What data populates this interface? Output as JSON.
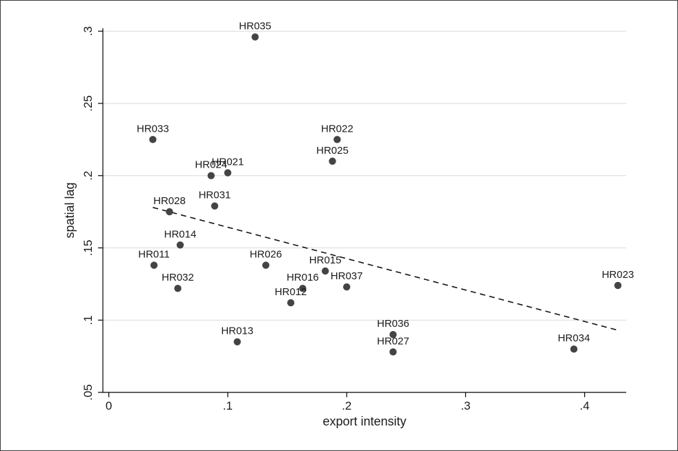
{
  "chart_data": {
    "type": "scatter",
    "title": "",
    "xlabel": "export intensity",
    "ylabel": "spatial lag",
    "xlim": [
      -0.005,
      0.435
    ],
    "ylim": [
      0.05,
      0.302
    ],
    "x_ticks": [
      0,
      0.1,
      0.2,
      0.3,
      0.4
    ],
    "x_tick_labels": [
      "0",
      ".1",
      ".2",
      ".3",
      ".4"
    ],
    "y_ticks": [
      0.05,
      0.1,
      0.15,
      0.2,
      0.25,
      0.3
    ],
    "y_tick_labels": [
      ".05",
      ".1",
      ".15",
      ".2",
      ".25",
      ".3"
    ],
    "grid": "horizontal",
    "points": [
      {
        "label": "HR035",
        "x": 0.123,
        "y": 0.296
      },
      {
        "label": "HR033",
        "x": 0.037,
        "y": 0.225
      },
      {
        "label": "HR022",
        "x": 0.192,
        "y": 0.225
      },
      {
        "label": "HR025",
        "x": 0.188,
        "y": 0.21
      },
      {
        "label": "HR024",
        "x": 0.086,
        "y": 0.2
      },
      {
        "label": "HR021",
        "x": 0.1,
        "y": 0.202
      },
      {
        "label": "HR031",
        "x": 0.089,
        "y": 0.179
      },
      {
        "label": "HR028",
        "x": 0.051,
        "y": 0.175
      },
      {
        "label": "HR014",
        "x": 0.06,
        "y": 0.152
      },
      {
        "label": "HR011",
        "x": 0.038,
        "y": 0.138
      },
      {
        "label": "HR026",
        "x": 0.132,
        "y": 0.138
      },
      {
        "label": "HR015",
        "x": 0.182,
        "y": 0.134
      },
      {
        "label": "HR016",
        "x": 0.163,
        "y": 0.122
      },
      {
        "label": "HR037",
        "x": 0.2,
        "y": 0.123
      },
      {
        "label": "HR032",
        "x": 0.058,
        "y": 0.122
      },
      {
        "label": "HR012",
        "x": 0.153,
        "y": 0.112
      },
      {
        "label": "HR023",
        "x": 0.428,
        "y": 0.124
      },
      {
        "label": "HR036",
        "x": 0.239,
        "y": 0.09
      },
      {
        "label": "HR013",
        "x": 0.108,
        "y": 0.085
      },
      {
        "label": "HR027",
        "x": 0.239,
        "y": 0.078
      },
      {
        "label": "HR034",
        "x": 0.391,
        "y": 0.08
      }
    ],
    "fit_line": {
      "style": "dashed",
      "points": [
        {
          "x": 0.037,
          "y": 0.178
        },
        {
          "x": 0.428,
          "y": 0.093
        }
      ]
    },
    "colors": {
      "points": "#444444",
      "line": "#111111",
      "grid": "#d9d9d9",
      "axis": "#000000"
    }
  }
}
